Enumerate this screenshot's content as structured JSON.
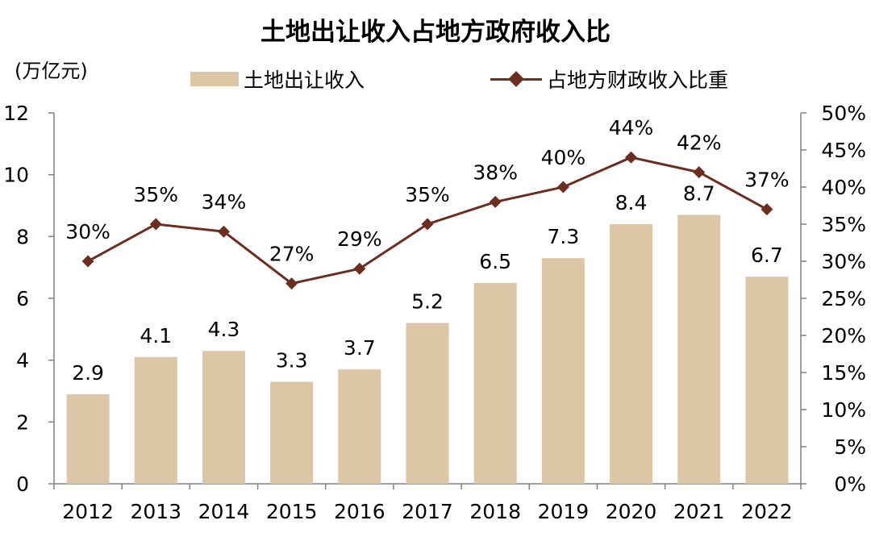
{
  "title": "土地出让收入占地方政府收入比",
  "unit_label": "(万亿元)",
  "legend": {
    "bar_label": "土地出让收入",
    "line_label": "占地方财政收入比重"
  },
  "colors": {
    "bar": "#dcc6a5",
    "line": "#6b2e20",
    "axis": "#808080"
  },
  "chart_data": {
    "type": "bar+line",
    "categories": [
      "2012",
      "2013",
      "2014",
      "2015",
      "2016",
      "2017",
      "2018",
      "2019",
      "2020",
      "2021",
      "2022"
    ],
    "series": [
      {
        "name": "土地出让收入",
        "type": "bar",
        "axis": "left",
        "values": [
          2.9,
          4.1,
          4.3,
          3.3,
          3.7,
          5.2,
          6.5,
          7.3,
          8.4,
          8.7,
          6.7
        ],
        "labels": [
          "2.9",
          "4.1",
          "4.3",
          "3.3",
          "3.7",
          "5.2",
          "6.5",
          "7.3",
          "8.4",
          "8.7",
          "6.7"
        ]
      },
      {
        "name": "占地方财政收入比重",
        "type": "line",
        "axis": "right",
        "values": [
          30,
          35,
          34,
          27,
          29,
          35,
          38,
          40,
          44,
          42,
          37
        ],
        "labels": [
          "30%",
          "35%",
          "34%",
          "27%",
          "29%",
          "35%",
          "38%",
          "40%",
          "44%",
          "42%",
          "37%"
        ]
      }
    ],
    "y_left": {
      "range": [
        0,
        12
      ],
      "ticks": [
        "0",
        "2",
        "4",
        "6",
        "8",
        "10",
        "12"
      ]
    },
    "y_right": {
      "range": [
        0,
        50
      ],
      "ticks": [
        "0%",
        "5%",
        "10%",
        "15%",
        "20%",
        "25%",
        "30%",
        "35%",
        "40%",
        "45%",
        "50%"
      ]
    },
    "grid": false,
    "legend_position": "top"
  }
}
